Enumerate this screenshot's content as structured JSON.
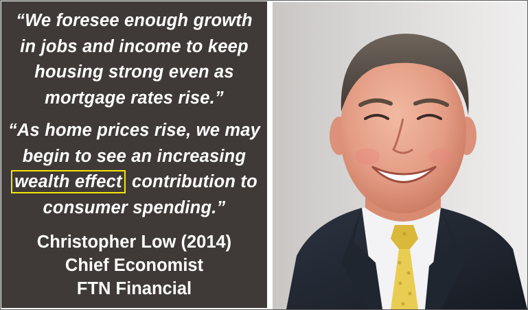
{
  "quote1": {
    "lines": [
      "“We foresee enough growth",
      "in jobs and income to keep",
      "housing strong even as",
      "mortgage rates rise.”"
    ]
  },
  "quote2": {
    "line1": "“As home prices rise, we may",
    "line2": "begin to see an increasing",
    "highlight": "wealth effect",
    "line3_rest": " contribution to",
    "line4": "consumer spending.”"
  },
  "attribution": {
    "name": "Christopher Low (2014)",
    "title": "Chief Economist",
    "company": "FTN Financial"
  },
  "colors": {
    "panel_background": "#3f3a37",
    "text": "#ffffff",
    "highlight_box": "#f4e600"
  },
  "photo": {
    "icon": "portrait-photo"
  }
}
